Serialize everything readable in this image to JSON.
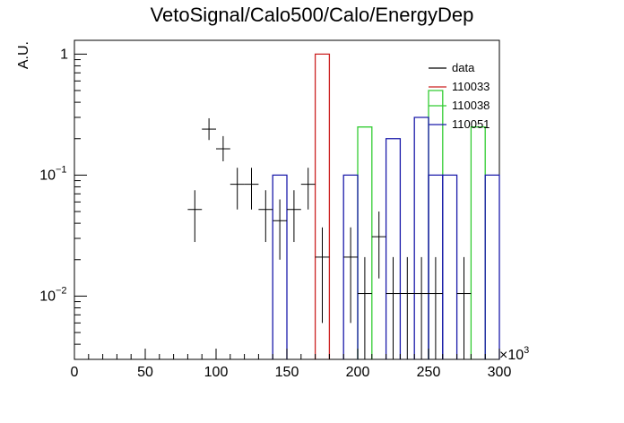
{
  "chart_data": {
    "type": "histogram",
    "title": "VetoSignal/Calo500/Calo/EnergyDep",
    "ylabel": "A.U.",
    "xlabel": "",
    "x_multiplier_label": "×10",
    "x_multiplier_exp": "3",
    "xlim": [
      0,
      300
    ],
    "ylim": [
      0.003,
      1.3
    ],
    "yscale": "log",
    "x_ticks": [
      0,
      50,
      100,
      150,
      200,
      250,
      300
    ],
    "y_ticks": [
      {
        "value": 0.01,
        "base": "10",
        "exp": "−2"
      },
      {
        "value": 0.1,
        "base": "10",
        "exp": "−1"
      },
      {
        "value": 1,
        "base": "1",
        "exp": ""
      }
    ],
    "legend_position": "top-right",
    "series": [
      {
        "name": "data",
        "kind": "points",
        "color": "#000000",
        "points": [
          {
            "x": 85,
            "y": 0.052,
            "err": [
              0.028,
              0.075
            ]
          },
          {
            "x": 95,
            "y": 0.24,
            "err": [
              0.195,
              0.295
            ]
          },
          {
            "x": 105,
            "y": 0.165,
            "err": [
              0.13,
              0.21
            ]
          },
          {
            "x": 115,
            "y": 0.084,
            "err": [
              0.052,
              0.115
            ]
          },
          {
            "x": 125,
            "y": 0.084,
            "err": [
              0.052,
              0.115
            ]
          },
          {
            "x": 135,
            "y": 0.052,
            "err": [
              0.028,
              0.075
            ]
          },
          {
            "x": 145,
            "y": 0.042,
            "err": [
              0.02,
              0.063
            ]
          },
          {
            "x": 155,
            "y": 0.052,
            "err": [
              0.028,
              0.075
            ]
          },
          {
            "x": 165,
            "y": 0.084,
            "err": [
              0.052,
              0.115
            ]
          },
          {
            "x": 175,
            "y": 0.021,
            "err": [
              0.006,
              0.037
            ]
          },
          {
            "x": 195,
            "y": 0.021,
            "err": [
              0.006,
              0.037
            ]
          },
          {
            "x": 205,
            "y": 0.0105,
            "err": [
              0.003,
              0.021
            ]
          },
          {
            "x": 215,
            "y": 0.031,
            "err": [
              0.014,
              0.05
            ]
          },
          {
            "x": 225,
            "y": 0.0105,
            "err": [
              0.003,
              0.021
            ]
          },
          {
            "x": 235,
            "y": 0.0105,
            "err": [
              0.003,
              0.021
            ]
          },
          {
            "x": 245,
            "y": 0.0105,
            "err": [
              0.003,
              0.021
            ]
          },
          {
            "x": 255,
            "y": 0.0105,
            "err": [
              0.003,
              0.021
            ]
          },
          {
            "x": 275,
            "y": 0.0105,
            "err": [
              0.003,
              0.021
            ]
          }
        ]
      },
      {
        "name": "110033",
        "kind": "step",
        "color": "#cc2222",
        "bins": [
          {
            "x0": 170,
            "x1": 180,
            "y": 1.0
          }
        ]
      },
      {
        "name": "110038",
        "kind": "step",
        "color": "#33cc33",
        "bins": [
          {
            "x0": 200,
            "x1": 210,
            "y": 0.25
          },
          {
            "x0": 250,
            "x1": 260,
            "y": 0.5
          },
          {
            "x0": 280,
            "x1": 290,
            "y": 0.25
          }
        ]
      },
      {
        "name": "110051",
        "kind": "step",
        "color": "#1a1aaa",
        "bins": [
          {
            "x0": 140,
            "x1": 150,
            "y": 0.1
          },
          {
            "x0": 190,
            "x1": 200,
            "y": 0.1
          },
          {
            "x0": 220,
            "x1": 230,
            "y": 0.2
          },
          {
            "x0": 240,
            "x1": 250,
            "y": 0.3
          },
          {
            "x0": 250,
            "x1": 260,
            "y": 0.1
          },
          {
            "x0": 260,
            "x1": 270,
            "y": 0.1
          },
          {
            "x0": 290,
            "x1": 300,
            "y": 0.1
          }
        ]
      }
    ]
  }
}
